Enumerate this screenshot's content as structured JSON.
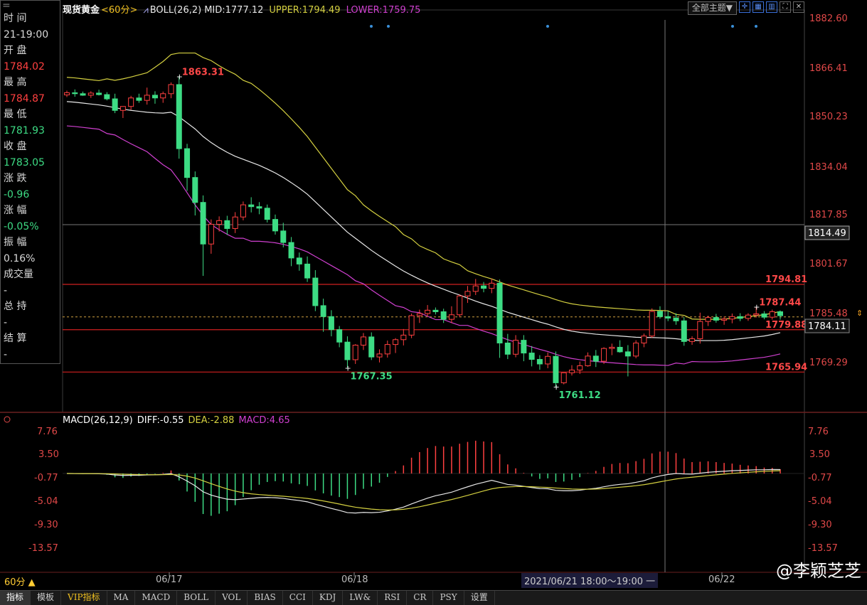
{
  "window": {
    "menu_glyph": "="
  },
  "info_panel": {
    "time_label": "时 间",
    "time_value": "21-19:00",
    "open_label": "开 盘",
    "open_value": "1784.02",
    "high_label": "最 高",
    "high_value": "1784.87",
    "low_label": "最 低",
    "low_value": "1781.93",
    "close_label": "收 盘",
    "close_value": "1783.05",
    "change_label": "涨 跌",
    "change_value": "-0.96",
    "pct_label": "涨 幅",
    "pct_value": "-0.05%",
    "amp_label": "振 幅",
    "amp_value": "0.16%",
    "vol_label": "成交量",
    "vol_value": "-",
    "oi_label": "总 持",
    "oi_value": "-",
    "settle_label": "结 算",
    "settle_value": "-"
  },
  "legend": {
    "symbol": "现货黄金",
    "period": "<60分>",
    "boll": "BOLL(26,2)",
    "mid": "MID:1777.12",
    "upper": "UPPER:1794.49",
    "lower": "LOWER:1759.75"
  },
  "toolbar": {
    "theme": "全部主题▼",
    "icons": [
      "crosshair-icon",
      "layout-icon",
      "chart-icon",
      "fullscreen-icon",
      "close-icon"
    ]
  },
  "price_axis": [
    "1882.60",
    "1866.41",
    "1850.23",
    "1834.04",
    "1817.85",
    "1801.67",
    "1785.48",
    "1769.29"
  ],
  "macd_axis": [
    "7.76",
    "3.50",
    "-0.77",
    "-5.04",
    "-9.30",
    "-13.57"
  ],
  "macd_legend": {
    "title": "MACD(26,12,9)",
    "diff": "DIFF:-0.55",
    "dea": "DEA:-2.88",
    "macd": "MACD:4.65"
  },
  "crosshair": {
    "price": "1814.49"
  },
  "current_price": "1784.11",
  "levels": [
    {
      "label": "1794.81",
      "value": 1794.81
    },
    {
      "label": "1779.88",
      "value": 1779.88
    },
    {
      "label": "1765.94",
      "value": 1765.94
    }
  ],
  "annotations": [
    {
      "label": "1863.31",
      "value": 1863.31,
      "kind": "high"
    },
    {
      "label": "1767.35",
      "value": 1767.35,
      "kind": "low"
    },
    {
      "label": "1761.12",
      "value": 1761.12,
      "kind": "low"
    },
    {
      "label": "1787.44",
      "value": 1787.44,
      "kind": "high"
    }
  ],
  "dates": [
    "06/17",
    "06/18",
    "06/22"
  ],
  "period_button": "60分 ▲",
  "range_label": "2021/06/21 18:00～19:00 一",
  "tabs": [
    "指标",
    "模板",
    "VIP指标",
    "MA",
    "MACD",
    "BOLL",
    "VOL",
    "BIAS",
    "CCI",
    "KDJ",
    "LW&",
    "RSI",
    "CR",
    "PSY",
    "设置"
  ],
  "watermark": "@李颖芝芝",
  "colors": {
    "up": "#ff4040",
    "down": "#3ddc84",
    "mid": "#e8e8e8",
    "upper": "#d4d040",
    "lower": "#d040d0",
    "level": "#d02020"
  },
  "chart_data": {
    "type": "candlestick",
    "title": "现货黄金",
    "ylim": [
      1760,
      1885
    ],
    "candles": [
      [
        1857.2,
        1858.6,
        1856.5,
        1857.9
      ],
      [
        1857.9,
        1859.0,
        1856.6,
        1857.6
      ],
      [
        1857.6,
        1858.3,
        1856.9,
        1857.1
      ],
      [
        1857.1,
        1858.4,
        1856.2,
        1857.8
      ],
      [
        1857.8,
        1858.9,
        1857.0,
        1857.3
      ],
      [
        1857.3,
        1858.1,
        1855.4,
        1855.9
      ],
      [
        1855.9,
        1857.6,
        1851.2,
        1852.1
      ],
      [
        1852.1,
        1853.1,
        1849.6,
        1853.4
      ],
      [
        1853.4,
        1856.9,
        1852.3,
        1856.2
      ],
      [
        1856.2,
        1857.6,
        1854.6,
        1855.4
      ],
      [
        1855.4,
        1859.6,
        1854.0,
        1857.1
      ],
      [
        1857.1,
        1858.4,
        1854.3,
        1856.2
      ],
      [
        1856.2,
        1858.3,
        1854.6,
        1857.6
      ],
      [
        1857.6,
        1861.3,
        1856.1,
        1860.6
      ],
      [
        1860.6,
        1863.3,
        1836.2,
        1839.5
      ],
      [
        1839.5,
        1841.1,
        1825.6,
        1830.0
      ],
      [
        1830.0,
        1832.0,
        1817.5,
        1821.8
      ],
      [
        1821.8,
        1824.1,
        1797.6,
        1808.1
      ],
      [
        1808.1,
        1816.2,
        1804.9,
        1814.6
      ],
      [
        1814.6,
        1817.2,
        1812.2,
        1815.8
      ],
      [
        1815.8,
        1817.4,
        1811.1,
        1813.2
      ],
      [
        1813.2,
        1818.6,
        1811.7,
        1817.0
      ],
      [
        1817.0,
        1822.1,
        1815.9,
        1821.0
      ],
      [
        1821.0,
        1823.5,
        1818.5,
        1820.4
      ],
      [
        1820.4,
        1821.9,
        1817.9,
        1819.9
      ],
      [
        1819.9,
        1821.1,
        1815.2,
        1816.2
      ],
      [
        1816.2,
        1817.8,
        1811.2,
        1812.4
      ],
      [
        1812.4,
        1815.1,
        1807.0,
        1808.6
      ],
      [
        1808.6,
        1810.4,
        1800.8,
        1803.5
      ],
      [
        1803.5,
        1805.3,
        1799.3,
        1801.5
      ],
      [
        1801.5,
        1804.0,
        1795.6,
        1796.9
      ],
      [
        1796.9,
        1799.5,
        1786.0,
        1787.8
      ],
      [
        1787.8,
        1790.1,
        1779.2,
        1784.2
      ],
      [
        1784.2,
        1786.3,
        1777.7,
        1779.9
      ],
      [
        1779.9,
        1781.1,
        1774.1,
        1775.8
      ],
      [
        1775.8,
        1777.7,
        1767.4,
        1770.0
      ],
      [
        1770.0,
        1775.1,
        1768.6,
        1774.8
      ],
      [
        1774.8,
        1778.8,
        1773.2,
        1777.5
      ],
      [
        1777.5,
        1779.0,
        1769.9,
        1770.9
      ],
      [
        1770.9,
        1773.4,
        1769.1,
        1771.9
      ],
      [
        1771.9,
        1776.3,
        1770.7,
        1775.0
      ],
      [
        1775.0,
        1777.1,
        1772.2,
        1776.6
      ],
      [
        1776.6,
        1780.1,
        1774.7,
        1778.1
      ],
      [
        1778.1,
        1785.2,
        1777.1,
        1784.5
      ],
      [
        1784.5,
        1786.5,
        1782.1,
        1785.2
      ],
      [
        1785.2,
        1788.0,
        1784.2,
        1786.3
      ],
      [
        1786.3,
        1787.2,
        1784.9,
        1785.8
      ],
      [
        1785.8,
        1786.8,
        1782.1,
        1783.3
      ],
      [
        1783.3,
        1787.6,
        1782.1,
        1784.8
      ],
      [
        1784.8,
        1791.5,
        1784.0,
        1791.0
      ],
      [
        1791.0,
        1794.3,
        1788.7,
        1792.5
      ],
      [
        1792.5,
        1796.6,
        1791.3,
        1794.3
      ],
      [
        1794.3,
        1795.6,
        1792.2,
        1793.5
      ],
      [
        1793.5,
        1796.7,
        1791.9,
        1795.2
      ],
      [
        1795.2,
        1796.4,
        1770.6,
        1775.5
      ],
      [
        1775.5,
        1778.5,
        1770.2,
        1771.8
      ],
      [
        1771.8,
        1778.1,
        1770.8,
        1776.4
      ],
      [
        1776.4,
        1778.1,
        1769.5,
        1772.2
      ],
      [
        1772.2,
        1774.5,
        1767.8,
        1770.1
      ],
      [
        1770.1,
        1771.5,
        1766.7,
        1768.6
      ],
      [
        1768.6,
        1772.4,
        1767.2,
        1771.1
      ],
      [
        1771.1,
        1772.7,
        1761.1,
        1762.4
      ],
      [
        1762.4,
        1765.5,
        1761.9,
        1765.7
      ],
      [
        1765.7,
        1768.2,
        1764.8,
        1766.6
      ],
      [
        1766.6,
        1769.4,
        1765.3,
        1768.0
      ],
      [
        1768.0,
        1772.4,
        1767.7,
        1771.2
      ],
      [
        1771.2,
        1773.2,
        1767.6,
        1769.5
      ],
      [
        1769.5,
        1774.1,
        1768.6,
        1773.7
      ],
      [
        1773.7,
        1775.3,
        1771.5,
        1774.1
      ],
      [
        1774.1,
        1776.4,
        1772.3,
        1772.6
      ],
      [
        1772.6,
        1774.8,
        1764.5,
        1771.2
      ],
      [
        1771.2,
        1776.4,
        1770.5,
        1775.5
      ],
      [
        1775.5,
        1778.6,
        1774.1,
        1777.8
      ],
      [
        1777.8,
        1786.9,
        1777.2,
        1785.9
      ],
      [
        1785.9,
        1787.6,
        1783.5,
        1784.2
      ],
      [
        1784.2,
        1786.1,
        1782.7,
        1783.7
      ],
      [
        1783.7,
        1785.3,
        1781.5,
        1782.8
      ],
      [
        1782.8,
        1784.0,
        1774.6,
        1776.0
      ],
      [
        1776.0,
        1777.7,
        1774.9,
        1776.9
      ],
      [
        1776.9,
        1785.5,
        1775.3,
        1782.6
      ],
      [
        1782.6,
        1784.5,
        1781.1,
        1783.9
      ],
      [
        1783.9,
        1785.1,
        1782.2,
        1783.0
      ],
      [
        1783.0,
        1784.2,
        1781.5,
        1783.4
      ],
      [
        1783.4,
        1785.2,
        1782.0,
        1784.2
      ],
      [
        1784.2,
        1785.3,
        1782.7,
        1783.6
      ],
      [
        1783.6,
        1785.3,
        1782.8,
        1784.7
      ],
      [
        1784.7,
        1787.4,
        1783.9,
        1785.1
      ],
      [
        1785.1,
        1786.0,
        1783.3,
        1784.0
      ],
      [
        1784.0,
        1786.5,
        1783.2,
        1785.8
      ],
      [
        1785.8,
        1786.2,
        1783.2,
        1784.5
      ]
    ],
    "boll_mid": [
      1855.0,
      1854.8,
      1854.5,
      1854.2,
      1853.9,
      1853.5,
      1853.0,
      1852.5,
      1852.1,
      1851.8,
      1851.5,
      1851.3,
      1851.2,
      1851.5,
      1850.0,
      1848.0,
      1846.0,
      1843.5,
      1841.5,
      1839.8,
      1838.3,
      1837.0,
      1836.0,
      1835.0,
      1834.0,
      1832.8,
      1831.5,
      1830.0,
      1828.3,
      1826.5,
      1824.5,
      1822.0,
      1819.5,
      1817.0,
      1814.5,
      1812.0,
      1810.0,
      1808.0,
      1806.0,
      1804.2,
      1802.5,
      1800.8,
      1799.2,
      1797.8,
      1796.5,
      1795.3,
      1794.2,
      1793.2,
      1792.2,
      1791.3,
      1790.3,
      1789.3,
      1788.4,
      1787.6,
      1786.6,
      1785.6,
      1784.8,
      1784.0,
      1783.2,
      1782.4,
      1781.7,
      1780.8,
      1780.0,
      1779.4,
      1779.0,
      1778.7,
      1778.4,
      1778.2,
      1778.0,
      1777.8,
      1777.6,
      1777.4,
      1777.3,
      1777.3,
      1777.2,
      1777.1,
      1776.9,
      1776.6,
      1776.4,
      1776.3,
      1776.3,
      1776.3,
      1776.4,
      1776.6,
      1776.9,
      1777.2,
      1777.5,
      1777.8,
      1778.3,
      1778.9
    ]
  }
}
